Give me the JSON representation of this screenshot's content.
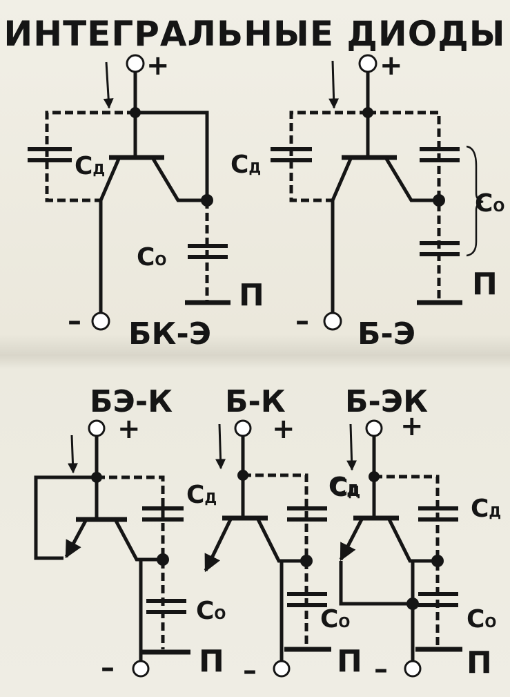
{
  "title": "ИНТЕГРАЛЬНЫЕ ДИОДЫ",
  "colors": {
    "ink": "#151515",
    "paper": "#efede4"
  },
  "signs": {
    "plus": "+",
    "minus": "–"
  },
  "pins": {
    "substrate": "П"
  },
  "caps": {
    "diffusion": "C",
    "diffusion_sub": "Д",
    "zero": "C",
    "zero_sub": "O"
  },
  "diagrams": [
    {
      "id": "bk-e",
      "label": "БК-Э"
    },
    {
      "id": "b-e",
      "label": "Б-Э"
    },
    {
      "id": "be-k",
      "label": "БЭ-К"
    },
    {
      "id": "b-k",
      "label": "Б-К"
    },
    {
      "id": "b-ek",
      "label": "Б-ЭК"
    }
  ]
}
